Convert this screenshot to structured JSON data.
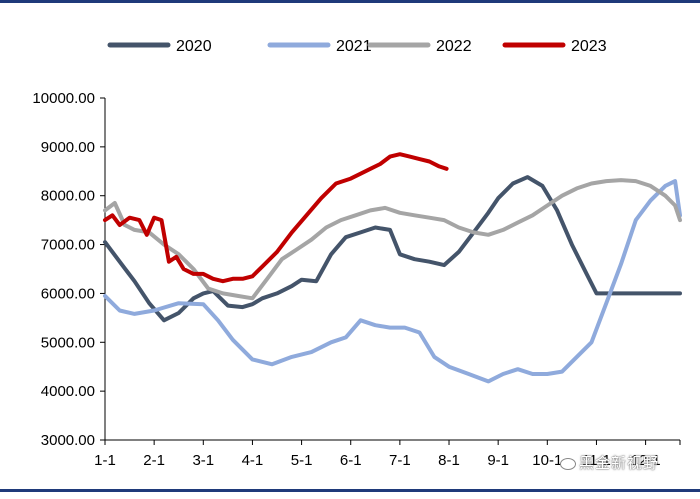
{
  "chart_data": {
    "type": "line",
    "title": "",
    "xlabel": "",
    "ylabel": "",
    "ylim": [
      3000,
      10000
    ],
    "yticks": [
      3000,
      4000,
      5000,
      6000,
      7000,
      8000,
      9000,
      10000
    ],
    "ytick_labels": [
      "3000.00",
      "4000.00",
      "5000.00",
      "6000.00",
      "7000.00",
      "8000.00",
      "9000.00",
      "10000.00"
    ],
    "xlim": [
      0,
      11.7
    ],
    "xticks": [
      0,
      1,
      2,
      3,
      4,
      5,
      6,
      7,
      8,
      9,
      10,
      11
    ],
    "xtick_labels": [
      "1-1",
      "2-1",
      "3-1",
      "4-1",
      "5-1",
      "6-1",
      "7-1",
      "8-1",
      "9-1",
      "10-1",
      "11-1",
      "12-1"
    ],
    "legend_position": "top",
    "series": [
      {
        "name": "2020",
        "color": "#44546a",
        "x": [
          0,
          0.3,
          0.6,
          0.9,
          1.2,
          1.5,
          1.8,
          2.0,
          2.2,
          2.5,
          2.8,
          3.0,
          3.2,
          3.5,
          3.8,
          4.0,
          4.3,
          4.6,
          4.9,
          5.2,
          5.5,
          5.8,
          6.0,
          6.3,
          6.6,
          6.9,
          7.2,
          7.5,
          7.8,
          8.0,
          8.3,
          8.6,
          8.9,
          9.2,
          9.5,
          9.8,
          10.0,
          10.3,
          10.6,
          10.9,
          11.2,
          11.5,
          11.7
        ],
        "values": [
          7050,
          6650,
          6250,
          5800,
          5450,
          5600,
          5900,
          6000,
          6050,
          5750,
          5720,
          5780,
          5900,
          6000,
          6150,
          6280,
          6250,
          6800,
          7150,
          7250,
          7350,
          7300,
          6800,
          6700,
          6650,
          6580,
          6850,
          7250,
          7650,
          7950,
          8250,
          8380,
          8200,
          7700,
          7000,
          6400,
          6000,
          6000,
          6000,
          6000,
          6000,
          6000,
          6000
        ]
      },
      {
        "name": "2021",
        "color": "#8faadc",
        "x": [
          0,
          0.3,
          0.6,
          1.0,
          1.5,
          2.0,
          2.3,
          2.6,
          3.0,
          3.4,
          3.8,
          4.2,
          4.6,
          4.9,
          5.2,
          5.5,
          5.8,
          6.1,
          6.4,
          6.7,
          7.0,
          7.4,
          7.8,
          8.1,
          8.4,
          8.7,
          9.0,
          9.3,
          9.6,
          9.9,
          10.2,
          10.5,
          10.8,
          11.1,
          11.4,
          11.6,
          11.7
        ],
        "values": [
          5950,
          5650,
          5580,
          5650,
          5800,
          5780,
          5450,
          5050,
          4650,
          4550,
          4700,
          4800,
          5000,
          5100,
          5450,
          5350,
          5300,
          5300,
          5200,
          4700,
          4500,
          4350,
          4200,
          4350,
          4450,
          4350,
          4350,
          4400,
          4700,
          5000,
          5800,
          6600,
          7500,
          7900,
          8200,
          8300,
          7600
        ]
      },
      {
        "name": "2022",
        "color": "#a5a5a5",
        "x": [
          0,
          0.2,
          0.4,
          0.6,
          0.9,
          1.2,
          1.5,
          1.8,
          2.1,
          2.4,
          2.7,
          3.0,
          3.3,
          3.6,
          3.9,
          4.2,
          4.5,
          4.8,
          5.1,
          5.4,
          5.7,
          6.0,
          6.3,
          6.6,
          6.9,
          7.2,
          7.5,
          7.8,
          8.1,
          8.4,
          8.7,
          9.0,
          9.3,
          9.6,
          9.9,
          10.2,
          10.5,
          10.8,
          11.1,
          11.4,
          11.6,
          11.7
        ],
        "values": [
          7700,
          7850,
          7400,
          7300,
          7250,
          7000,
          6800,
          6500,
          6100,
          6000,
          5950,
          5900,
          6300,
          6700,
          6900,
          7100,
          7350,
          7500,
          7600,
          7700,
          7750,
          7650,
          7600,
          7550,
          7500,
          7350,
          7250,
          7200,
          7300,
          7450,
          7600,
          7800,
          8000,
          8150,
          8250,
          8300,
          8320,
          8300,
          8200,
          8000,
          7800,
          7500
        ]
      },
      {
        "name": "2023",
        "color": "#c00000",
        "x": [
          0,
          0.15,
          0.3,
          0.5,
          0.7,
          0.85,
          1.0,
          1.15,
          1.3,
          1.45,
          1.6,
          1.8,
          2.0,
          2.2,
          2.4,
          2.6,
          2.8,
          3.0,
          3.2,
          3.5,
          3.8,
          4.1,
          4.4,
          4.7,
          5.0,
          5.2,
          5.4,
          5.6,
          5.8,
          6.0,
          6.2,
          6.4,
          6.6,
          6.8,
          6.95
        ],
        "values": [
          7500,
          7600,
          7400,
          7550,
          7500,
          7200,
          7550,
          7500,
          6650,
          6750,
          6500,
          6400,
          6400,
          6300,
          6250,
          6300,
          6300,
          6350,
          6550,
          6850,
          7250,
          7600,
          7950,
          8250,
          8350,
          8450,
          8550,
          8650,
          8800,
          8850,
          8800,
          8750,
          8700,
          8600,
          8550
        ]
      }
    ]
  },
  "watermark": "黑金新视野"
}
